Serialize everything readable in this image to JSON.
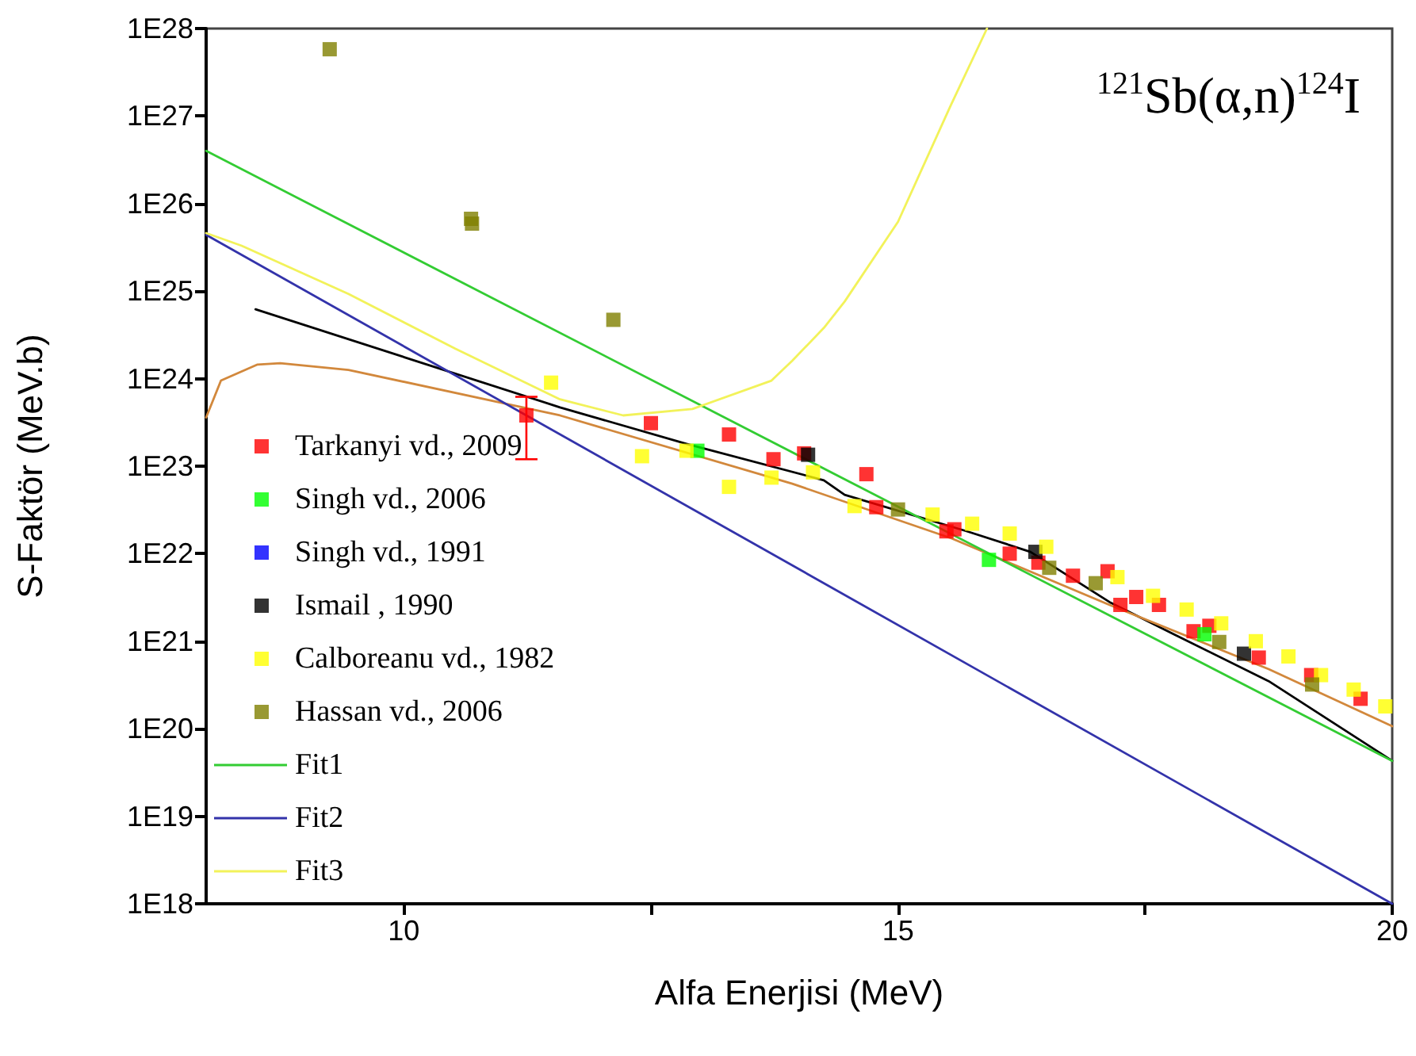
{
  "chart_data": {
    "type": "scatter",
    "title": "$^{121}$Sb(α,n)$^{124}$I",
    "xlabel": "Alfa Enerjisi (MeV)",
    "ylabel": "S-Faktör (MeV.b)",
    "xlim": [
      8,
      20
    ],
    "xticks": [
      10,
      {
        "value": 12.5,
        "label": null
      },
      15,
      {
        "value": 17.5,
        "label": null
      },
      20
    ],
    "ylim": [
      1e+18,
      1e+28
    ],
    "yticks": [
      {
        "value": 1e+18,
        "label": "1E18"
      },
      {
        "value": 1e+19,
        "label": "1E19"
      },
      {
        "value": 1e+20,
        "label": "1E20"
      },
      {
        "value": 1e+21,
        "label": "1E21"
      },
      {
        "value": 1e+22,
        "label": "1E22"
      },
      {
        "value": 1e+23,
        "label": "1E23"
      },
      {
        "value": 1e+24,
        "label": "1E24"
      },
      {
        "value": 1e+25,
        "label": "1E25"
      },
      {
        "value": 1e+26,
        "label": "1E26"
      },
      {
        "value": 1e+27,
        "label": "1E27"
      },
      {
        "value": 1e+28,
        "label": "1E28"
      }
    ],
    "log": "y",
    "grid": false,
    "legend": "bottom left",
    "marker": "square",
    "series": [
      {
        "name": "Tarkanyi vd., 2009",
        "color": "#ff0000",
        "x": [
          11.24,
          12.5,
          13.29,
          13.74,
          14.05,
          14.68,
          14.78,
          15.49,
          15.57,
          16.13,
          16.42,
          16.77,
          17.12,
          17.25,
          17.41,
          17.64,
          17.99,
          18.15,
          18.65,
          19.18,
          19.68
        ],
        "values": [
          3.8e+23,
          3.1e+23,
          2.3e+23,
          1.2e+23,
          1.4e+23,
          8.1e+22,
          3.4e+22,
          1.8e+22,
          1.9e+22,
          1e+22,
          7.9e+21,
          5.6e+21,
          6.3e+21,
          2.6e+21,
          3.2e+21,
          2.6e+21,
          1.3e+21,
          1.5e+21,
          6.5e+20,
          4.1e+20,
          2.2e+20
        ],
        "errors": [
          [
            1.2e+23,
            6.2e+23
          ],
          null,
          null,
          null,
          null,
          null,
          null,
          null,
          null,
          null,
          null,
          null,
          null,
          null,
          null,
          null,
          null,
          null,
          null,
          null,
          null
        ]
      },
      {
        "name": "Singh vd., 2006",
        "color": "#00ff00",
        "x": [
          12.97,
          15.92,
          18.1
        ],
        "values": [
          1.5e+23,
          8.5e+21,
          1.2e+21
        ]
      },
      {
        "name": "Singh vd., 1991",
        "color": "#0000ff"
      },
      {
        "name": "Ismail , 1990",
        "color": "#000000",
        "x": [
          14.09,
          16.39,
          18.5
        ],
        "values": [
          1.35e+23,
          1.05e+22,
          7.2e+20
        ]
      },
      {
        "name": "Calboreanu vd., 1982",
        "color": "#ffff00",
        "x": [
          11.49,
          12.41,
          12.86,
          13.29,
          13.72,
          14.14,
          14.56,
          15.35,
          15.75,
          16.13,
          16.5,
          17.22,
          17.58,
          17.92,
          18.27,
          18.62,
          18.95,
          19.28,
          19.61,
          19.93
        ],
        "values": [
          9e+23,
          1.3e+23,
          1.5e+23,
          5.8e+22,
          7.4e+22,
          8.5e+22,
          3.5e+22,
          2.8e+22,
          2.2e+22,
          1.7e+22,
          1.2e+22,
          5.4e+21,
          3.3e+21,
          2.3e+21,
          1.6e+21,
          1e+21,
          6.7e+20,
          4.1e+20,
          2.8e+20,
          1.8e+20
        ]
      },
      {
        "name": "Hassan vd., 2006",
        "color": "#808000",
        "x": [
          9.25,
          10.68,
          10.69,
          12.12,
          15.0,
          16.53,
          17.0,
          18.25,
          19.19
        ],
        "values": [
          5.8e+27,
          6.7e+25,
          5.9e+25,
          4.7e+24,
          3.2e+22,
          6.9e+21,
          4.6e+21,
          9.8e+20,
          3.2e+20
        ]
      },
      {
        "type": "line",
        "marker": "none",
        "line_style": "solid",
        "color": "#000000",
        "x": [
          8.5,
          11.58,
          12.86,
          14.25,
          14.46,
          15.7,
          16.34,
          17.14,
          17.79,
          18.75,
          20
        ],
        "values": [
          6.2e+24,
          4.7e+23,
          1.8e+23,
          6.9e+22,
          4.7e+22,
          1.8e+22,
          1.05e+22,
          2.8e+21,
          1.2e+21,
          3.5e+20,
          4.3e+19
        ]
      },
      {
        "type": "line",
        "marker": "none",
        "line_style": "solid",
        "color": "#d2883c",
        "x": [
          8,
          8.15,
          8.52,
          8.75,
          9.44,
          11.58,
          13.93,
          15.54,
          17.14,
          18.75,
          20
        ],
        "values": [
          3.6e+23,
          9.5e+23,
          1.45e+24,
          1.5e+24,
          1.26e+24,
          3.8e+23,
          6.3e+22,
          1.5e+22,
          2.6e+21,
          4.8e+20,
          1.07e+20
        ]
      },
      {
        "name": "Fit1",
        "type": "line",
        "marker": "none",
        "line_style": "solid",
        "color": "#33cc33",
        "x": [
          8,
          20
        ],
        "values": [
          4e+26,
          4.3e+19
        ]
      },
      {
        "name": "Fit2",
        "type": "line",
        "marker": "none",
        "line_style": "solid",
        "color": "#3333aa",
        "x": [
          8,
          20
        ],
        "values": [
          4.4e+25,
          1e+18
        ]
      },
      {
        "name": "Fit3",
        "type": "line",
        "marker": "none",
        "line_style": "solid",
        "color": "#f2f25a",
        "x": [
          8,
          8.36,
          9.44,
          10.52,
          11.58,
          12.22,
          12.92,
          13.72,
          13.93,
          14.25,
          14.46,
          15.0,
          15.53,
          15.9
        ],
        "values": [
          4.6e+25,
          3.3e+25,
          9.3e+24,
          2.2e+24,
          5.8e+23,
          3.8e+23,
          4.5e+23,
          9.5e+23,
          1.6e+24,
          3.8e+24,
          7.6e+24,
          6.2e+25,
          1.3e+27,
          1e+28
        ]
      }
    ]
  }
}
